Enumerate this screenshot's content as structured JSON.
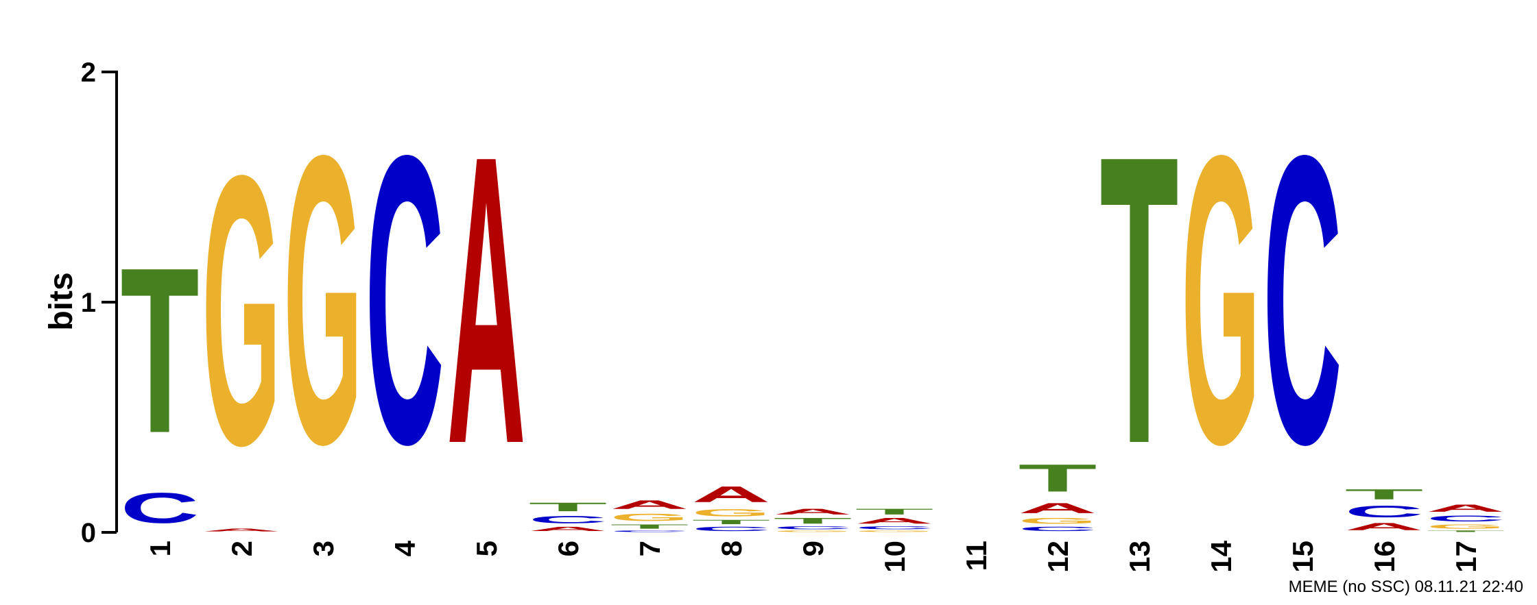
{
  "footer": "MEME (no SSC) 08.11.21 22:40",
  "chart_data": {
    "type": "sequence-logo",
    "ylabel": "bits",
    "ylim": [
      0,
      2
    ],
    "yticks": [
      "0",
      "1",
      "2"
    ],
    "colors": {
      "A": "#b30000",
      "C": "#0000c8",
      "G": "#ecb12c",
      "T": "#47801e"
    },
    "positions": [
      {
        "label": "1",
        "letters": [
          {
            "base": "C",
            "bits": 0.21
          },
          {
            "base": "T",
            "bits": 1.15
          }
        ]
      },
      {
        "label": "2",
        "letters": [
          {
            "base": "A",
            "bits": 0.02
          },
          {
            "base": "G",
            "bits": 1.87
          }
        ]
      },
      {
        "label": "3",
        "letters": [
          {
            "base": "G",
            "bits": 2.0
          }
        ]
      },
      {
        "label": "4",
        "letters": [
          {
            "base": "C",
            "bits": 2.0
          }
        ]
      },
      {
        "label": "5",
        "letters": [
          {
            "base": "A",
            "bits": 2.0
          }
        ]
      },
      {
        "label": "6",
        "letters": [
          {
            "base": "A",
            "bits": 0.03
          },
          {
            "base": "C",
            "bits": 0.05
          },
          {
            "base": "T",
            "bits": 0.06
          }
        ]
      },
      {
        "label": "7",
        "letters": [
          {
            "base": "C",
            "bits": 0.01
          },
          {
            "base": "T",
            "bits": 0.03
          },
          {
            "base": "G",
            "bits": 0.05
          },
          {
            "base": "A",
            "bits": 0.06
          }
        ]
      },
      {
        "label": "8",
        "letters": [
          {
            "base": "C",
            "bits": 0.03
          },
          {
            "base": "T",
            "bits": 0.03
          },
          {
            "base": "G",
            "bits": 0.05
          },
          {
            "base": "A",
            "bits": 0.11
          }
        ]
      },
      {
        "label": "9",
        "letters": [
          {
            "base": "G",
            "bits": 0.01
          },
          {
            "base": "C",
            "bits": 0.02
          },
          {
            "base": "T",
            "bits": 0.04
          },
          {
            "base": "A",
            "bits": 0.04
          }
        ]
      },
      {
        "label": "10",
        "letters": [
          {
            "base": "G",
            "bits": 0.01
          },
          {
            "base": "C",
            "bits": 0.02
          },
          {
            "base": "A",
            "bits": 0.04
          },
          {
            "base": "T",
            "bits": 0.04
          }
        ]
      },
      {
        "label": "11",
        "letters": []
      },
      {
        "label": "12",
        "letters": [
          {
            "base": "C",
            "bits": 0.03
          },
          {
            "base": "G",
            "bits": 0.04
          },
          {
            "base": "A",
            "bits": 0.07
          },
          {
            "base": "T",
            "bits": 0.19
          }
        ]
      },
      {
        "label": "13",
        "letters": [
          {
            "base": "T",
            "bits": 2.0
          }
        ]
      },
      {
        "label": "14",
        "letters": [
          {
            "base": "G",
            "bits": 2.0
          }
        ]
      },
      {
        "label": "15",
        "letters": [
          {
            "base": "C",
            "bits": 2.0
          }
        ]
      },
      {
        "label": "16",
        "letters": [
          {
            "base": "A",
            "bits": 0.05
          },
          {
            "base": "C",
            "bits": 0.08
          },
          {
            "base": "T",
            "bits": 0.07
          }
        ]
      },
      {
        "label": "17",
        "letters": [
          {
            "base": "T",
            "bits": 0.01
          },
          {
            "base": "G",
            "bits": 0.03
          },
          {
            "base": "C",
            "bits": 0.04
          },
          {
            "base": "A",
            "bits": 0.05
          }
        ]
      }
    ]
  }
}
